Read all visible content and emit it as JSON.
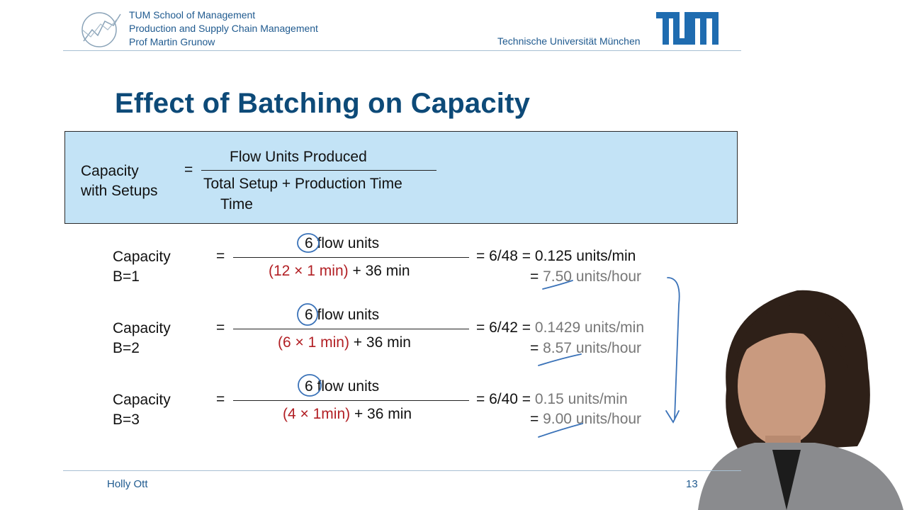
{
  "header": {
    "school_lines": [
      "TUM School of Management",
      "Production and Supply Chain Management",
      "Prof Martin Grunow"
    ],
    "university": "Technische Universität München",
    "logo_text": "TUM"
  },
  "slide": {
    "title": "Effect of Batching on Capacity",
    "definition": {
      "label_line1": "Capacity",
      "label_line2": "with Setups",
      "equals": "=",
      "numerator": "Flow Units Produced",
      "denominator_line1": "Total Setup + Production Time",
      "denominator_line2": "Time"
    },
    "rows": [
      {
        "label_line1": "Capacity",
        "label_line2": "B=1",
        "equals": "=",
        "num_value": "6",
        "num_unit": "flow units",
        "den_red": "(12 × 1 min)",
        "den_rest": " + 36 min",
        "res_line1_a": "= 6/48 = ",
        "res_line1_b": "0.125 units/min",
        "res_line2_a": "= ",
        "res_line2_b": "7.50 units/hour"
      },
      {
        "label_line1": "Capacity",
        "label_line2": "B=2",
        "equals": "=",
        "num_value": "6",
        "num_unit": "flow units",
        "den_red": "(6 × 1 min)",
        "den_rest": " + 36 min",
        "res_line1_a": "= 6/42 = ",
        "res_line1_b": "0.1429 units/min",
        "res_line2_a": "= ",
        "res_line2_b": "8.57 units/hour"
      },
      {
        "label_line1": "Capacity",
        "label_line2": "B=3",
        "equals": "=",
        "num_value": "6",
        "num_unit": "flow units",
        "den_red": "(4 × 1min)",
        "den_rest": " + 36 min",
        "res_line1_a": "= 6/40 = ",
        "res_line1_b": "0.15 units/min",
        "res_line2_a": "= ",
        "res_line2_b": "9.00 units/hour"
      }
    ]
  },
  "footer": {
    "presenter": "Holly Ott",
    "page_number": "13"
  },
  "colors": {
    "brand_blue": "#1f5a8f",
    "title_blue": "#0d4a78",
    "box_fill": "#c3e3f6",
    "red": "#b21f24",
    "ink": "#3a72b8"
  }
}
